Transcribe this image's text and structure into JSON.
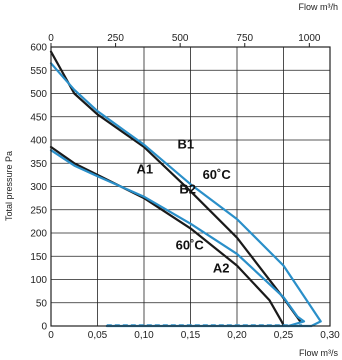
{
  "chart_data": {
    "type": "line",
    "ylabel": "Total pressure Pa",
    "xlabel": "Flow m³/s",
    "x2label": "Flow m³/h",
    "x_ticks": [
      "0",
      "0,05",
      "0,10",
      "0,15",
      "0,20",
      "0,25",
      "0,30"
    ],
    "x2_ticks": [
      "0",
      "250",
      "500",
      "750",
      "1000"
    ],
    "y_ticks": [
      "0",
      "50",
      "100",
      "150",
      "200",
      "250",
      "300",
      "350",
      "400",
      "450",
      "500",
      "550",
      "600"
    ],
    "xlim": [
      0,
      0.3
    ],
    "x2lim": [
      0,
      1080
    ],
    "ylim": [
      0,
      600
    ],
    "grid": true,
    "colors": {
      "black_curve": "#1a1a1a",
      "blue_curve": "#2a8fc9",
      "grid": "#222222"
    },
    "series": [
      {
        "name": "B1",
        "color": "black",
        "x": [
          0,
          0.025,
          0.05,
          0.1,
          0.15,
          0.2,
          0.25,
          0.268
        ],
        "y": [
          590,
          500,
          455,
          385,
          290,
          190,
          60,
          10
        ]
      },
      {
        "name": "B1 60˚C",
        "color": "blue",
        "x": [
          0,
          0.025,
          0.05,
          0.1,
          0.15,
          0.2,
          0.25,
          0.28,
          0.29,
          0.28,
          0.18,
          0.06
        ],
        "y": [
          565,
          508,
          462,
          390,
          305,
          230,
          130,
          40,
          10,
          0,
          0,
          0
        ]
      },
      {
        "name": "A2",
        "color": "black",
        "x": [
          0,
          0.025,
          0.05,
          0.1,
          0.15,
          0.2,
          0.235,
          0.248,
          0.25
        ],
        "y": [
          385,
          350,
          325,
          275,
          210,
          130,
          55,
          10,
          2
        ]
      },
      {
        "name": "A2 60˚C",
        "color": "blue",
        "x": [
          0,
          0.025,
          0.05,
          0.1,
          0.15,
          0.2,
          0.25,
          0.265,
          0.272,
          0.255
        ],
        "y": [
          378,
          345,
          322,
          278,
          220,
          155,
          62,
          20,
          10,
          0
        ]
      }
    ],
    "labels": [
      {
        "text": "A1",
        "x": 0.092,
        "y": 328
      },
      {
        "text": "B1",
        "x": 0.136,
        "y": 382
      },
      {
        "text": "B2",
        "x": 0.138,
        "y": 285
      },
      {
        "text": "60˚C",
        "x": 0.163,
        "y": 316
      },
      {
        "text": "60˚C",
        "x": 0.134,
        "y": 165
      },
      {
        "text": "A2",
        "x": 0.174,
        "y": 115
      }
    ]
  }
}
